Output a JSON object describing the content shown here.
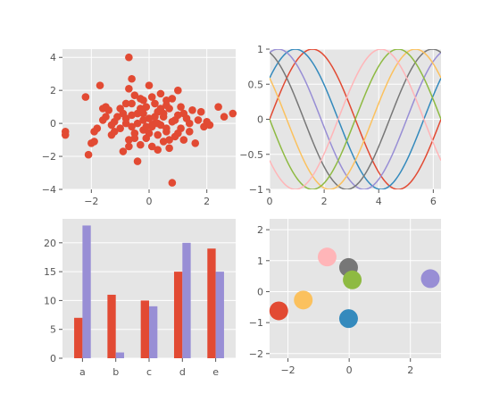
{
  "chart_data": [
    {
      "type": "scatter",
      "color": "#E24A33",
      "xlim": [
        -3.0,
        3.0
      ],
      "ylim": [
        -4.0,
        4.5
      ],
      "xticks": [
        -2,
        0,
        2
      ],
      "yticks": [
        -4,
        -2,
        0,
        2,
        4
      ],
      "grid": true,
      "points": [
        [
          -0.7,
          4.0
        ],
        [
          -2.2,
          1.6
        ],
        [
          -2.9,
          -0.5
        ],
        [
          -2.9,
          -0.7
        ],
        [
          -1.7,
          2.3
        ],
        [
          -1.9,
          -1.1
        ],
        [
          -2.0,
          -1.2
        ],
        [
          -2.1,
          -1.9
        ],
        [
          -1.8,
          -0.3
        ],
        [
          -1.9,
          -0.5
        ],
        [
          -1.6,
          0.2
        ],
        [
          -1.5,
          0.4
        ],
        [
          -1.5,
          1.0
        ],
        [
          -1.6,
          0.9
        ],
        [
          -1.4,
          0.8
        ],
        [
          -1.3,
          -0.7
        ],
        [
          -1.2,
          -0.5
        ],
        [
          -1.2,
          0.1
        ],
        [
          -1.0,
          -0.3
        ],
        [
          -1.0,
          0.9
        ],
        [
          -0.9,
          -1.7
        ],
        [
          -0.8,
          1.2
        ],
        [
          -0.8,
          0.3
        ],
        [
          -0.7,
          2.1
        ],
        [
          -0.7,
          -1.0
        ],
        [
          -0.6,
          2.7
        ],
        [
          -0.6,
          0.5
        ],
        [
          -0.5,
          -0.6
        ],
        [
          -0.5,
          1.7
        ],
        [
          -0.4,
          -2.3
        ],
        [
          -0.4,
          0.0
        ],
        [
          -0.3,
          1.5
        ],
        [
          -0.3,
          -1.3
        ],
        [
          -0.2,
          0.6
        ],
        [
          -0.2,
          -0.4
        ],
        [
          -0.1,
          1.0
        ],
        [
          -0.1,
          -0.9
        ],
        [
          0.0,
          0.3
        ],
        [
          0.0,
          2.3
        ],
        [
          0.1,
          -0.2
        ],
        [
          0.1,
          -1.4
        ],
        [
          0.2,
          1.2
        ],
        [
          0.2,
          0.0
        ],
        [
          0.3,
          -0.7
        ],
        [
          0.3,
          0.7
        ],
        [
          0.4,
          1.8
        ],
        [
          0.4,
          -0.1
        ],
        [
          0.5,
          -1.1
        ],
        [
          0.5,
          0.4
        ],
        [
          0.6,
          1.1
        ],
        [
          0.6,
          -0.5
        ],
        [
          0.7,
          0.9
        ],
        [
          0.7,
          -1.5
        ],
        [
          0.8,
          0.1
        ],
        [
          0.8,
          1.5
        ],
        [
          0.9,
          -0.8
        ],
        [
          1.0,
          0.5
        ],
        [
          1.0,
          2.0
        ],
        [
          1.1,
          -0.3
        ],
        [
          1.1,
          1.0
        ],
        [
          1.2,
          -1.0
        ],
        [
          1.3,
          0.3
        ],
        [
          1.4,
          -0.5
        ],
        [
          1.5,
          0.8
        ],
        [
          1.6,
          -1.2
        ],
        [
          1.7,
          0.2
        ],
        [
          1.8,
          0.7
        ],
        [
          1.9,
          -0.2
        ],
        [
          2.0,
          0.1
        ],
        [
          2.1,
          -0.1
        ],
        [
          2.4,
          1.0
        ],
        [
          2.6,
          0.4
        ],
        [
          2.9,
          0.6
        ],
        [
          0.8,
          -3.6
        ],
        [
          0.1,
          -0.1
        ],
        [
          -0.2,
          0.2
        ],
        [
          0.3,
          0.0
        ],
        [
          -0.1,
          -0.2
        ],
        [
          0.2,
          0.4
        ],
        [
          -0.4,
          0.6
        ],
        [
          0.6,
          -0.3
        ],
        [
          -0.6,
          -0.2
        ],
        [
          0.4,
          0.9
        ],
        [
          -0.3,
          0.9
        ],
        [
          0.0,
          -0.6
        ],
        [
          0.5,
          0.6
        ],
        [
          -0.8,
          0.0
        ],
        [
          0.9,
          0.2
        ],
        [
          -1.1,
          0.4
        ],
        [
          1.2,
          0.6
        ],
        [
          -0.5,
          -0.9
        ],
        [
          0.7,
          -1.0
        ],
        [
          -0.9,
          0.6
        ],
        [
          1.0,
          -0.6
        ],
        [
          -0.2,
          1.4
        ],
        [
          0.1,
          1.6
        ],
        [
          0.3,
          -1.6
        ],
        [
          -0.6,
          1.2
        ],
        [
          0.6,
          1.4
        ],
        [
          -1.3,
          -0.1
        ],
        [
          1.4,
          0.0
        ],
        [
          -0.7,
          -1.4
        ]
      ]
    },
    {
      "type": "line",
      "xlim": [
        0,
        6.283
      ],
      "ylim": [
        -1.0,
        1.0
      ],
      "xticks": [
        0,
        2,
        4,
        6
      ],
      "yticks": [
        -1.0,
        -0.5,
        0.0,
        0.5,
        1.0
      ],
      "grid": true,
      "function": "sin(x + shift)",
      "series": [
        {
          "shift": 0.0,
          "color": "#E24A33"
        },
        {
          "shift": 0.6283,
          "color": "#348ABD"
        },
        {
          "shift": 1.2566,
          "color": "#988ED5"
        },
        {
          "shift": 1.885,
          "color": "#777777"
        },
        {
          "shift": 2.5133,
          "color": "#FBC15E"
        },
        {
          "shift": 3.1416,
          "color": "#8EBA42"
        },
        {
          "shift": 3.7699,
          "color": "#FFB5B8"
        }
      ]
    },
    {
      "type": "bar",
      "categories": [
        "a",
        "b",
        "c",
        "d",
        "e"
      ],
      "ylim": [
        0,
        24.15
      ],
      "yticks": [
        0,
        5,
        10,
        15,
        20
      ],
      "grid": true,
      "series": [
        {
          "values": [
            7,
            11,
            10,
            15,
            19
          ],
          "color": "#E24A33"
        },
        {
          "values": [
            23,
            1,
            9,
            20,
            15
          ],
          "color": "#988ED5"
        }
      ]
    },
    {
      "type": "scatter",
      "xlim": [
        -2.6,
        3.0
      ],
      "ylim": [
        -2.15,
        2.35
      ],
      "xticks": [
        -2,
        0,
        2
      ],
      "yticks": [
        -2,
        -1,
        0,
        1,
        2
      ],
      "grid": true,
      "points": [
        {
          "x": -2.3,
          "y": -0.62,
          "color": "#E24A33"
        },
        {
          "x": -0.02,
          "y": -0.87,
          "color": "#348ABD"
        },
        {
          "x": 2.65,
          "y": 0.42,
          "color": "#988ED5"
        },
        {
          "x": -0.02,
          "y": 0.78,
          "color": "#777777"
        },
        {
          "x": -1.5,
          "y": -0.27,
          "color": "#FBC15E"
        },
        {
          "x": 0.1,
          "y": 0.38,
          "color": "#8EBA42"
        },
        {
          "x": -0.72,
          "y": 1.12,
          "color": "#FFB5B8"
        }
      ]
    }
  ]
}
